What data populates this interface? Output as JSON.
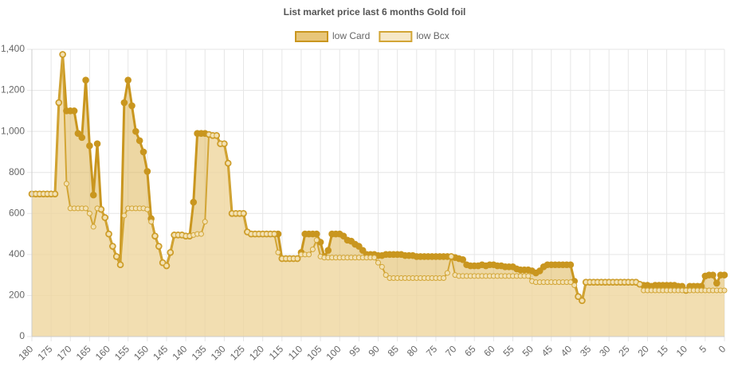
{
  "chart_data": {
    "type": "line",
    "title": "List market price last 6 months Gold foil",
    "x": [
      180,
      179,
      178,
      177,
      176,
      175,
      174,
      173,
      172,
      171,
      170,
      169,
      168,
      167,
      166,
      165,
      164,
      163,
      162,
      161,
      160,
      159,
      158,
      157,
      156,
      155,
      154,
      153,
      152,
      151,
      150,
      149,
      148,
      147,
      146,
      145,
      144,
      143,
      142,
      141,
      140,
      139,
      138,
      137,
      136,
      135,
      134,
      133,
      132,
      131,
      130,
      129,
      128,
      127,
      126,
      125,
      124,
      123,
      122,
      121,
      120,
      119,
      118,
      117,
      116,
      115,
      114,
      113,
      112,
      111,
      110,
      109,
      108,
      107,
      106,
      105,
      104,
      103,
      102,
      101,
      100,
      99,
      98,
      97,
      96,
      95,
      94,
      93,
      92,
      91,
      90,
      89,
      88,
      87,
      86,
      85,
      84,
      83,
      82,
      81,
      80,
      79,
      78,
      77,
      76,
      75,
      74,
      73,
      72,
      71,
      70,
      69,
      68,
      67,
      66,
      65,
      64,
      63,
      62,
      61,
      60,
      59,
      58,
      57,
      56,
      55,
      54,
      53,
      52,
      51,
      50,
      49,
      48,
      47,
      46,
      45,
      44,
      43,
      42,
      41,
      40,
      39,
      38,
      37,
      36,
      35,
      34,
      33,
      32,
      31,
      30,
      29,
      28,
      27,
      26,
      25,
      24,
      23,
      22,
      21,
      20,
      19,
      18,
      17,
      16,
      15,
      14,
      13,
      12,
      11,
      10,
      9,
      8,
      7,
      6,
      5,
      4,
      3,
      2,
      1,
      0
    ],
    "series": [
      {
        "name": "low Card",
        "color": "#c9961f",
        "fill": "rgba(222,183,88,0.55)",
        "values": [
          695,
          695,
          695,
          695,
          695,
          695,
          695,
          1140,
          1375,
          1100,
          1100,
          1100,
          990,
          970,
          1250,
          930,
          690,
          940,
          620,
          580,
          500,
          440,
          390,
          350,
          1140,
          1250,
          1125,
          1000,
          955,
          900,
          805,
          575,
          490,
          440,
          360,
          345,
          410,
          495,
          495,
          495,
          490,
          490,
          655,
          990,
          990,
          990,
          985,
          980,
          980,
          940,
          940,
          845,
          600,
          600,
          600,
          600,
          510,
          500,
          500,
          500,
          500,
          500,
          500,
          500,
          500,
          380,
          380,
          380,
          380,
          380,
          410,
          500,
          500,
          500,
          500,
          460,
          390,
          420,
          500,
          500,
          500,
          490,
          470,
          465,
          450,
          440,
          420,
          400,
          400,
          400,
          395,
          395,
          400,
          400,
          400,
          400,
          400,
          395,
          395,
          395,
          390,
          390,
          390,
          390,
          390,
          390,
          390,
          390,
          390,
          390,
          385,
          380,
          375,
          350,
          345,
          345,
          345,
          350,
          345,
          350,
          350,
          345,
          345,
          340,
          340,
          340,
          330,
          325,
          325,
          325,
          320,
          310,
          320,
          340,
          350,
          350,
          350,
          350,
          350,
          350,
          350,
          270,
          195,
          175,
          265,
          265,
          265,
          265,
          265,
          265,
          265,
          265,
          265,
          265,
          265,
          265,
          265,
          265,
          255,
          250,
          250,
          245,
          250,
          250,
          250,
          250,
          250,
          250,
          245,
          245,
          225,
          245,
          245,
          245,
          245,
          295,
          300,
          300,
          260,
          300,
          300
        ]
      },
      {
        "name": "low Bcx",
        "color": "#d2a535",
        "fill": "rgba(245,228,190,0.55)",
        "values": [
          695,
          695,
          695,
          695,
          695,
          695,
          695,
          1140,
          1375,
          745,
          625,
          625,
          625,
          625,
          625,
          600,
          535,
          625,
          620,
          580,
          500,
          440,
          390,
          350,
          590,
          625,
          625,
          625,
          625,
          625,
          620,
          560,
          490,
          440,
          360,
          345,
          410,
          495,
          495,
          495,
          490,
          490,
          495,
          500,
          500,
          560,
          985,
          980,
          980,
          940,
          940,
          845,
          600,
          600,
          600,
          600,
          510,
          500,
          500,
          500,
          500,
          500,
          500,
          500,
          410,
          380,
          380,
          380,
          380,
          380,
          400,
          400,
          400,
          425,
          470,
          390,
          385,
          385,
          385,
          385,
          385,
          385,
          385,
          385,
          385,
          385,
          385,
          385,
          385,
          385,
          360,
          340,
          300,
          285,
          285,
          285,
          285,
          285,
          285,
          285,
          285,
          285,
          285,
          285,
          285,
          285,
          285,
          285,
          310,
          390,
          300,
          295,
          295,
          295,
          295,
          295,
          295,
          295,
          295,
          295,
          295,
          295,
          295,
          295,
          295,
          295,
          295,
          295,
          295,
          295,
          270,
          265,
          265,
          265,
          265,
          265,
          265,
          265,
          265,
          265,
          265,
          250,
          195,
          175,
          265,
          265,
          265,
          265,
          265,
          265,
          265,
          265,
          265,
          265,
          265,
          265,
          265,
          265,
          255,
          225,
          225,
          225,
          225,
          225,
          225,
          225,
          225,
          225,
          225,
          225,
          225,
          225,
          225,
          225,
          225,
          225,
          225,
          225,
          225,
          225,
          225
        ]
      }
    ],
    "xlim": [
      180,
      0
    ],
    "xticks": [
      180,
      175,
      170,
      165,
      160,
      155,
      150,
      145,
      140,
      135,
      130,
      125,
      120,
      115,
      110,
      105,
      100,
      95,
      90,
      85,
      80,
      75,
      70,
      65,
      60,
      55,
      50,
      45,
      40,
      35,
      30,
      25,
      20,
      15,
      10,
      5,
      0
    ],
    "ylim": [
      0,
      1400
    ],
    "yticks": [
      0,
      200,
      400,
      600,
      800,
      {
        "value": 1000,
        "label": "1,000"
      },
      {
        "value": 1200,
        "label": "1,200"
      },
      {
        "value": 1400,
        "label": "1,400"
      }
    ],
    "grid": true,
    "legend": "top"
  }
}
